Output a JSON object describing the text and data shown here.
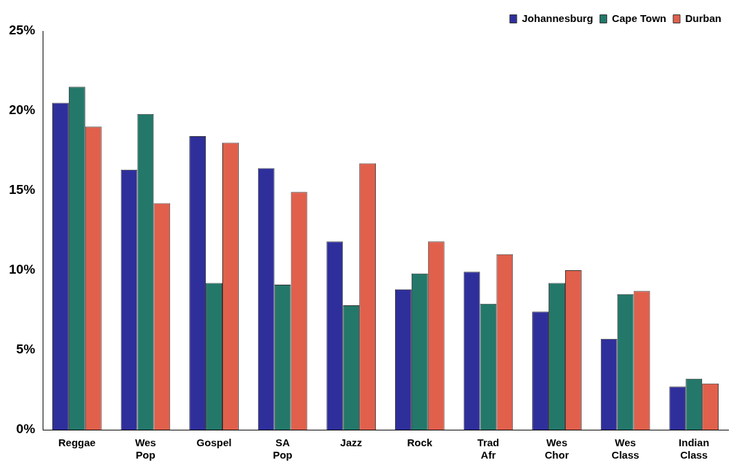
{
  "chart_data": {
    "type": "bar",
    "categories": [
      "Reggae",
      "Wes Pop",
      "Gospel",
      "SA Pop",
      "Jazz",
      "Rock",
      "Trad Afr",
      "Wes Chor",
      "Wes Class",
      "Indian Class"
    ],
    "series": [
      {
        "name": "Johannesburg",
        "color": "#2f2f9c",
        "values": [
          20.5,
          16.3,
          18.4,
          16.4,
          11.8,
          8.8,
          9.9,
          7.4,
          5.7,
          2.7
        ]
      },
      {
        "name": "Cape Town",
        "color": "#23786a",
        "values": [
          21.5,
          19.8,
          9.2,
          9.1,
          7.8,
          9.8,
          7.9,
          9.2,
          8.5,
          3.2
        ]
      },
      {
        "name": "Durban",
        "color": "#e0604c",
        "values": [
          19.0,
          14.2,
          18.0,
          14.9,
          16.7,
          11.8,
          11.0,
          10.0,
          8.7,
          2.9
        ]
      }
    ],
    "ylim": [
      0,
      25
    ],
    "yticks": [
      {
        "value": 0,
        "label": "0%"
      },
      {
        "value": 5,
        "label": "5%"
      },
      {
        "value": 10,
        "label": "10%"
      },
      {
        "value": 15,
        "label": "15%"
      },
      {
        "value": 20,
        "label": "20%"
      },
      {
        "value": 25,
        "label": "25%"
      }
    ],
    "grid": false,
    "legend": "top right"
  }
}
